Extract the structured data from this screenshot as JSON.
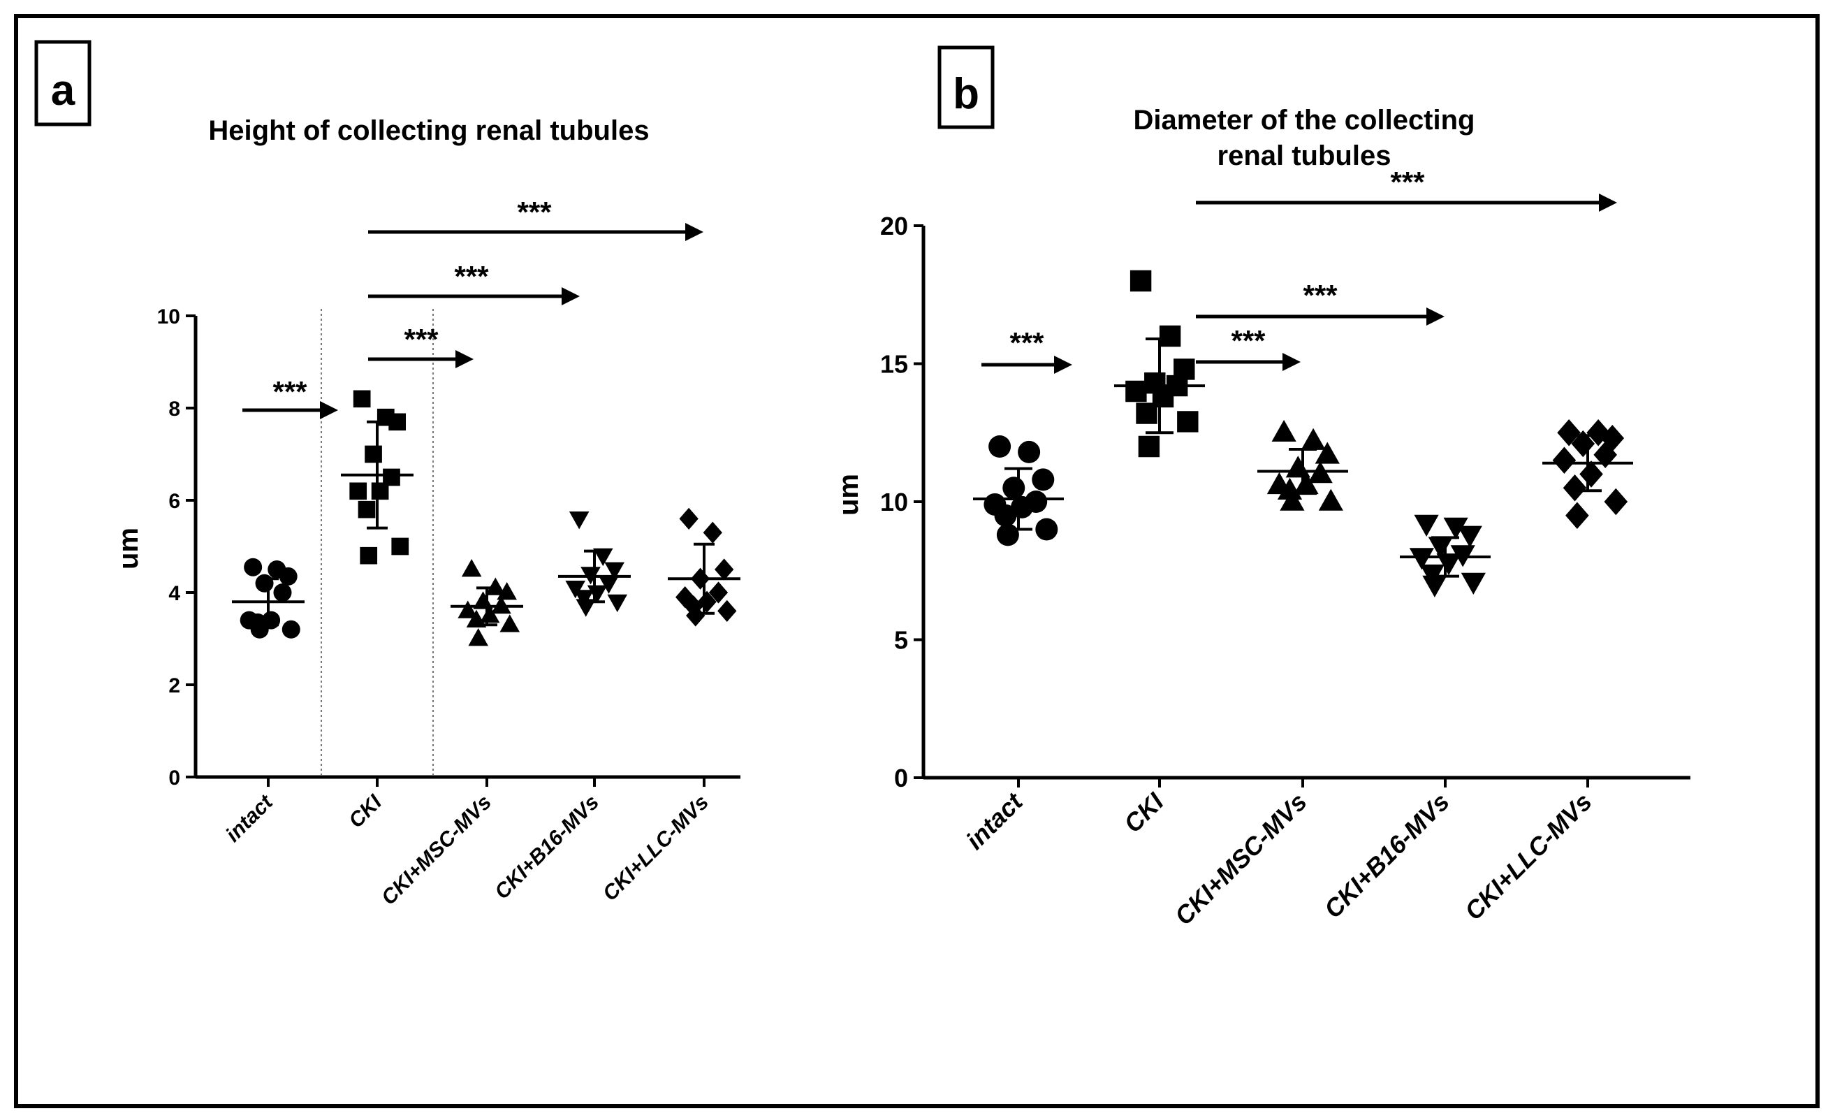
{
  "chart_data": [
    {
      "type": "scatter",
      "panel_label": "a",
      "title": [
        "Height of collecting renal  tubules"
      ],
      "ylabel": "um",
      "ylim": [
        0,
        10
      ],
      "yticks": [
        "0",
        "2",
        "4",
        "6",
        "8",
        "10"
      ],
      "categories": [
        "intact",
        "CKI",
        "CKI+MSC-MVs",
        "CKI+B16-MVs",
        "CKI+LLC-MVs"
      ],
      "marker_shapes": [
        "circle",
        "square",
        "triangle-up",
        "triangle-down",
        "diamond"
      ],
      "series": [
        {
          "points": [
            4.55,
            4.5,
            4.35,
            4.2,
            4.0,
            3.4,
            3.4,
            3.35,
            3.2,
            3.2
          ],
          "mean": 3.8,
          "sd": 0.5
        },
        {
          "points": [
            8.2,
            7.8,
            7.7,
            7.0,
            6.5,
            6.2,
            6.2,
            5.8,
            5.0,
            4.8
          ],
          "mean": 6.55,
          "sd": 1.15
        },
        {
          "points": [
            4.5,
            4.1,
            4.0,
            3.8,
            3.7,
            3.6,
            3.5,
            3.4,
            3.3,
            3.0
          ],
          "mean": 3.7,
          "sd": 0.4
        },
        {
          "points": [
            5.6,
            4.8,
            4.5,
            4.4,
            4.2,
            4.1,
            4.0,
            3.9,
            3.8,
            3.7
          ],
          "mean": 4.35,
          "sd": 0.55
        },
        {
          "points": [
            5.6,
            5.3,
            4.5,
            4.3,
            4.0,
            3.9,
            3.8,
            3.7,
            3.6,
            3.5
          ],
          "mean": 4.3,
          "sd": 0.75
        }
      ],
      "significance": [
        {
          "label": "***",
          "from_category": 0,
          "to_category": 1
        },
        {
          "label": "***",
          "from_category": 1,
          "to_category": 2
        },
        {
          "label": "***",
          "from_category": 1,
          "to_category": 3
        },
        {
          "label": "***",
          "from_category": 1,
          "to_category": 4
        }
      ]
    },
    {
      "type": "scatter",
      "panel_label": "b",
      "title": [
        "Diameter of the collecting",
        "renal tubules"
      ],
      "ylabel": "um",
      "ylim": [
        0,
        20
      ],
      "yticks": [
        "0",
        "5",
        "10",
        "15",
        "20"
      ],
      "categories": [
        "intact",
        "CKI",
        "CKI+MSC-MVs",
        "CKI+B16-MVs",
        "CKI+LLC-MVs"
      ],
      "marker_shapes": [
        "circle",
        "square",
        "triangle-up",
        "triangle-down",
        "diamond"
      ],
      "series": [
        {
          "points": [
            12.0,
            11.8,
            10.8,
            10.5,
            10.0,
            9.9,
            9.8,
            9.5,
            9.0,
            8.8
          ],
          "mean": 10.1,
          "sd": 1.1
        },
        {
          "points": [
            18.0,
            16.0,
            14.8,
            14.3,
            14.2,
            14.0,
            13.8,
            13.2,
            12.9,
            12.0
          ],
          "mean": 14.2,
          "sd": 1.7
        },
        {
          "points": [
            12.5,
            12.2,
            11.7,
            11.2,
            11.0,
            10.6,
            10.6,
            10.4,
            10.0,
            10.0
          ],
          "mean": 11.1,
          "sd": 0.8
        },
        {
          "points": [
            9.2,
            9.1,
            8.8,
            8.4,
            8.1,
            8.0,
            7.8,
            7.4,
            7.1,
            7.0
          ],
          "mean": 8.0,
          "sd": 0.7
        },
        {
          "points": [
            12.5,
            12.5,
            12.3,
            12.1,
            11.7,
            11.5,
            11.0,
            10.5,
            10.0,
            9.5
          ],
          "mean": 11.4,
          "sd": 1.0
        }
      ],
      "significance": [
        {
          "label": "***",
          "from_category": 0,
          "to_category": 0
        },
        {
          "label": "***",
          "from_category": 1,
          "to_category": 2
        },
        {
          "label": "***",
          "from_category": 1,
          "to_category": 3
        },
        {
          "label": "***",
          "from_category": 1,
          "to_category": 4
        }
      ]
    }
  ]
}
